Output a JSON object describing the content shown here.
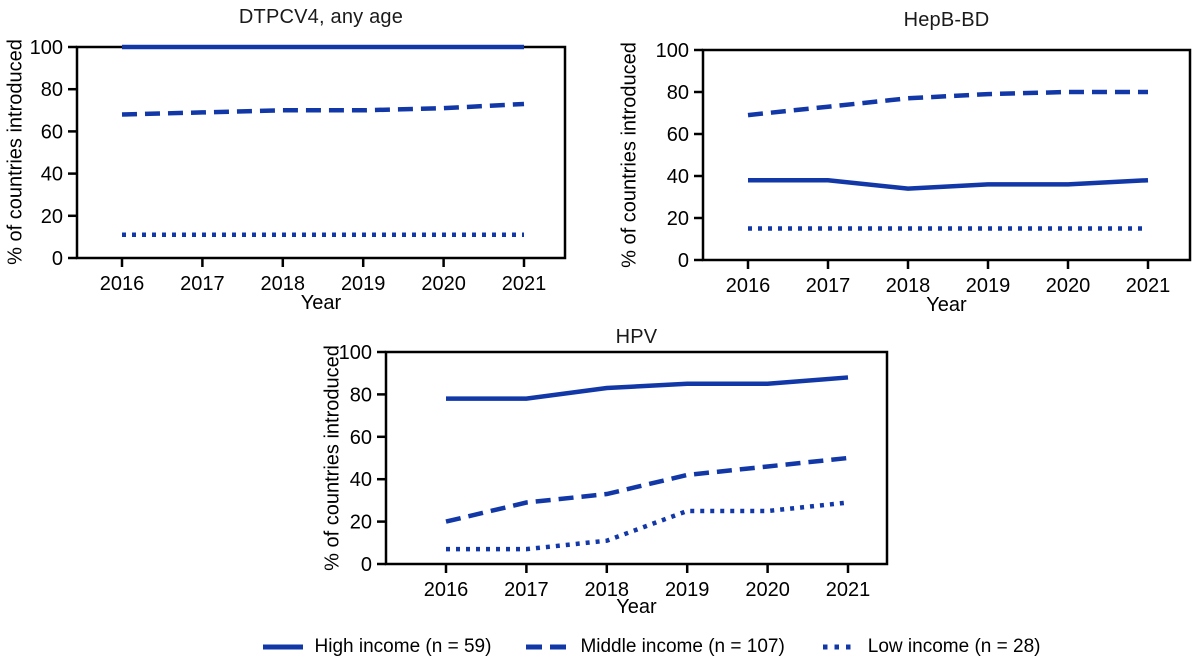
{
  "colors": {
    "line_blue": "#1238a8",
    "axis_black": "#000000"
  },
  "legend": {
    "items": [
      {
        "label": "High income (n = 59)",
        "style": "solid"
      },
      {
        "label": "Middle income (n = 107)",
        "style": "dashed"
      },
      {
        "label": "Low income (n = 28)",
        "style": "dotted"
      }
    ]
  },
  "chart_data": [
    {
      "type": "line",
      "title": "DTPCV4, any age",
      "xlabel": "Year",
      "ylabel": "% of countries introduced",
      "x": [
        2016,
        2017,
        2018,
        2019,
        2020,
        2021
      ],
      "ylim": [
        0,
        100
      ],
      "yticks": [
        0,
        20,
        40,
        60,
        80,
        100
      ],
      "grid": false,
      "legend_position": "shared-bottom",
      "series": [
        {
          "name": "High income (n = 59)",
          "style": "solid",
          "values": [
            100,
            100,
            100,
            100,
            100,
            100
          ]
        },
        {
          "name": "Middle income (n = 107)",
          "style": "dashed",
          "values": [
            68,
            69,
            70,
            70,
            71,
            73
          ]
        },
        {
          "name": "Low income (n = 28)",
          "style": "dotted",
          "values": [
            11,
            11,
            11,
            11,
            11,
            11
          ]
        }
      ]
    },
    {
      "type": "line",
      "title": "HepB-BD",
      "xlabel": "Year",
      "ylabel": "% of countries introduced",
      "x": [
        2016,
        2017,
        2018,
        2019,
        2020,
        2021
      ],
      "ylim": [
        0,
        100
      ],
      "yticks": [
        0,
        20,
        40,
        60,
        80,
        100
      ],
      "grid": false,
      "legend_position": "shared-bottom",
      "series": [
        {
          "name": "High income (n = 59)",
          "style": "solid",
          "values": [
            38,
            38,
            34,
            36,
            36,
            38
          ]
        },
        {
          "name": "Middle income (n = 107)",
          "style": "dashed",
          "values": [
            69,
            73,
            77,
            79,
            80,
            80
          ]
        },
        {
          "name": "Low income (n = 28)",
          "style": "dotted",
          "values": [
            15,
            15,
            15,
            15,
            15,
            15
          ]
        }
      ]
    },
    {
      "type": "line",
      "title": "HPV",
      "xlabel": "Year",
      "ylabel": "% of countries introduced",
      "x": [
        2016,
        2017,
        2018,
        2019,
        2020,
        2021
      ],
      "ylim": [
        0,
        100
      ],
      "yticks": [
        0,
        20,
        40,
        60,
        80,
        100
      ],
      "grid": false,
      "legend_position": "shared-bottom",
      "series": [
        {
          "name": "High income (n = 59)",
          "style": "solid",
          "values": [
            78,
            78,
            83,
            85,
            85,
            88
          ]
        },
        {
          "name": "Middle income (n = 107)",
          "style": "dashed",
          "values": [
            20,
            29,
            33,
            42,
            46,
            50
          ]
        },
        {
          "name": "Low income (n = 28)",
          "style": "dotted",
          "values": [
            7,
            7,
            11,
            25,
            25,
            29
          ]
        }
      ]
    }
  ]
}
